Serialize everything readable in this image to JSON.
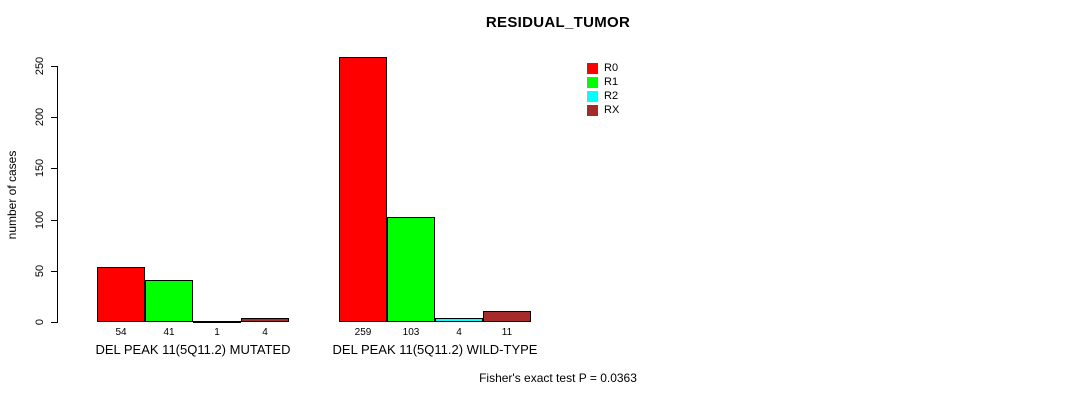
{
  "chart_data": {
    "type": "bar",
    "title": "RESIDUAL_TUMOR",
    "xlabel": "",
    "ylabel": "number of cases",
    "ylim": [
      0,
      250
    ],
    "yticks": [
      0,
      50,
      100,
      150,
      200,
      250
    ],
    "grid": false,
    "legend_position": "top-right",
    "categories": [
      "DEL PEAK 11(5Q11.2) MUTATED",
      "DEL PEAK 11(5Q11.2) WILD-TYPE"
    ],
    "series": [
      {
        "name": "R0",
        "color": "#FF0000",
        "values": [
          54,
          259
        ]
      },
      {
        "name": "R1",
        "color": "#00FF00",
        "values": [
          41,
          103
        ]
      },
      {
        "name": "R2",
        "color": "#00FFFF",
        "values": [
          1,
          4
        ]
      },
      {
        "name": "RX",
        "color": "#A52A2A",
        "values": [
          4,
          11
        ]
      }
    ],
    "bar_value_labels": [
      [
        "54",
        "41",
        "1",
        "4"
      ],
      [
        "259",
        "103",
        "4",
        "11"
      ]
    ],
    "annotation": "Fisher's exact test P = 0.0363"
  },
  "colors": {
    "axis": "#000000",
    "text": "#000000",
    "background": "#FFFFFF"
  }
}
